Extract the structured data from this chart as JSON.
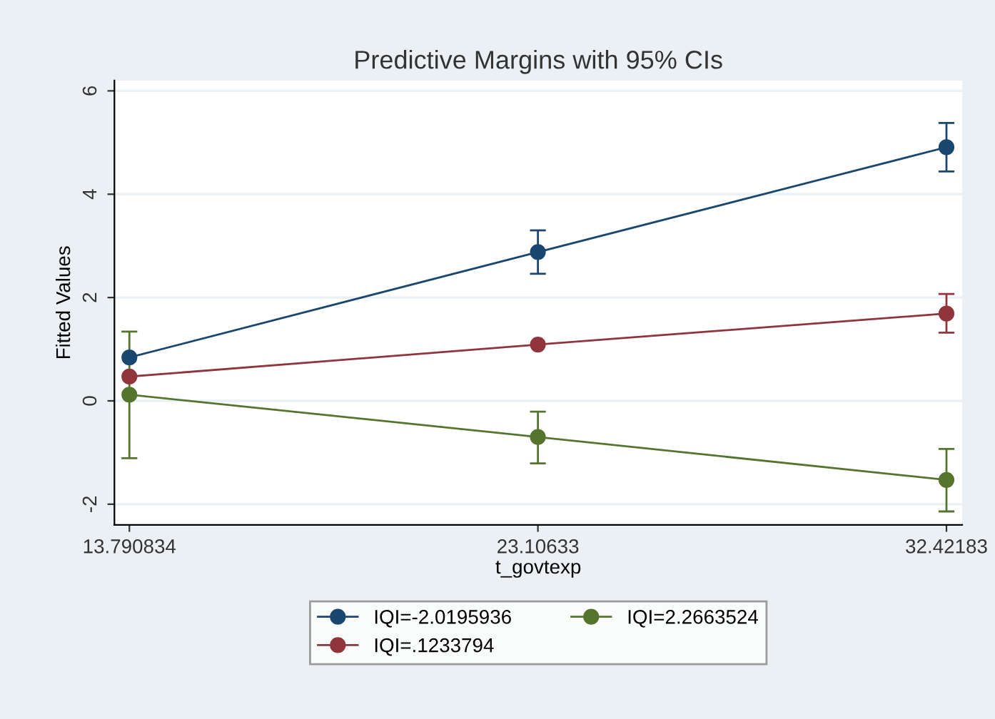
{
  "chart_data": {
    "type": "line",
    "title": "Predictive Margins with 95% CIs",
    "xlabel": "t_govtexp",
    "ylabel": "Fitted Values",
    "x": [
      13.790834,
      23.10633,
      32.42183
    ],
    "xlim": [
      13.45,
      32.78
    ],
    "xticks": [
      13.790834,
      23.10633,
      32.42183
    ],
    "ylim": [
      -2.4,
      6.2
    ],
    "yticks": [
      6,
      4,
      2,
      0,
      -2
    ],
    "grid": "y",
    "legend": "bottom",
    "marker": "circle",
    "line_style": "solid",
    "series": [
      {
        "name": "IQI=-2.0195936",
        "color": "#1a476f",
        "values": [
          0.84,
          2.88,
          4.91
        ],
        "errors": [
          null,
          [
            2.46,
            3.3
          ],
          [
            4.44,
            5.38
          ]
        ]
      },
      {
        "name": "IQI=.1233794",
        "color": "#90353b",
        "values": [
          0.47,
          1.09,
          1.69
        ],
        "errors": [
          null,
          null,
          [
            1.32,
            2.07
          ]
        ]
      },
      {
        "name": "IQI=2.2663524",
        "color": "#55752f",
        "values": [
          0.12,
          -0.7,
          -1.53
        ],
        "errors": [
          [
            -1.11,
            1.34
          ],
          [
            -1.21,
            -0.21
          ],
          [
            -2.14,
            -0.93
          ]
        ]
      }
    ]
  }
}
